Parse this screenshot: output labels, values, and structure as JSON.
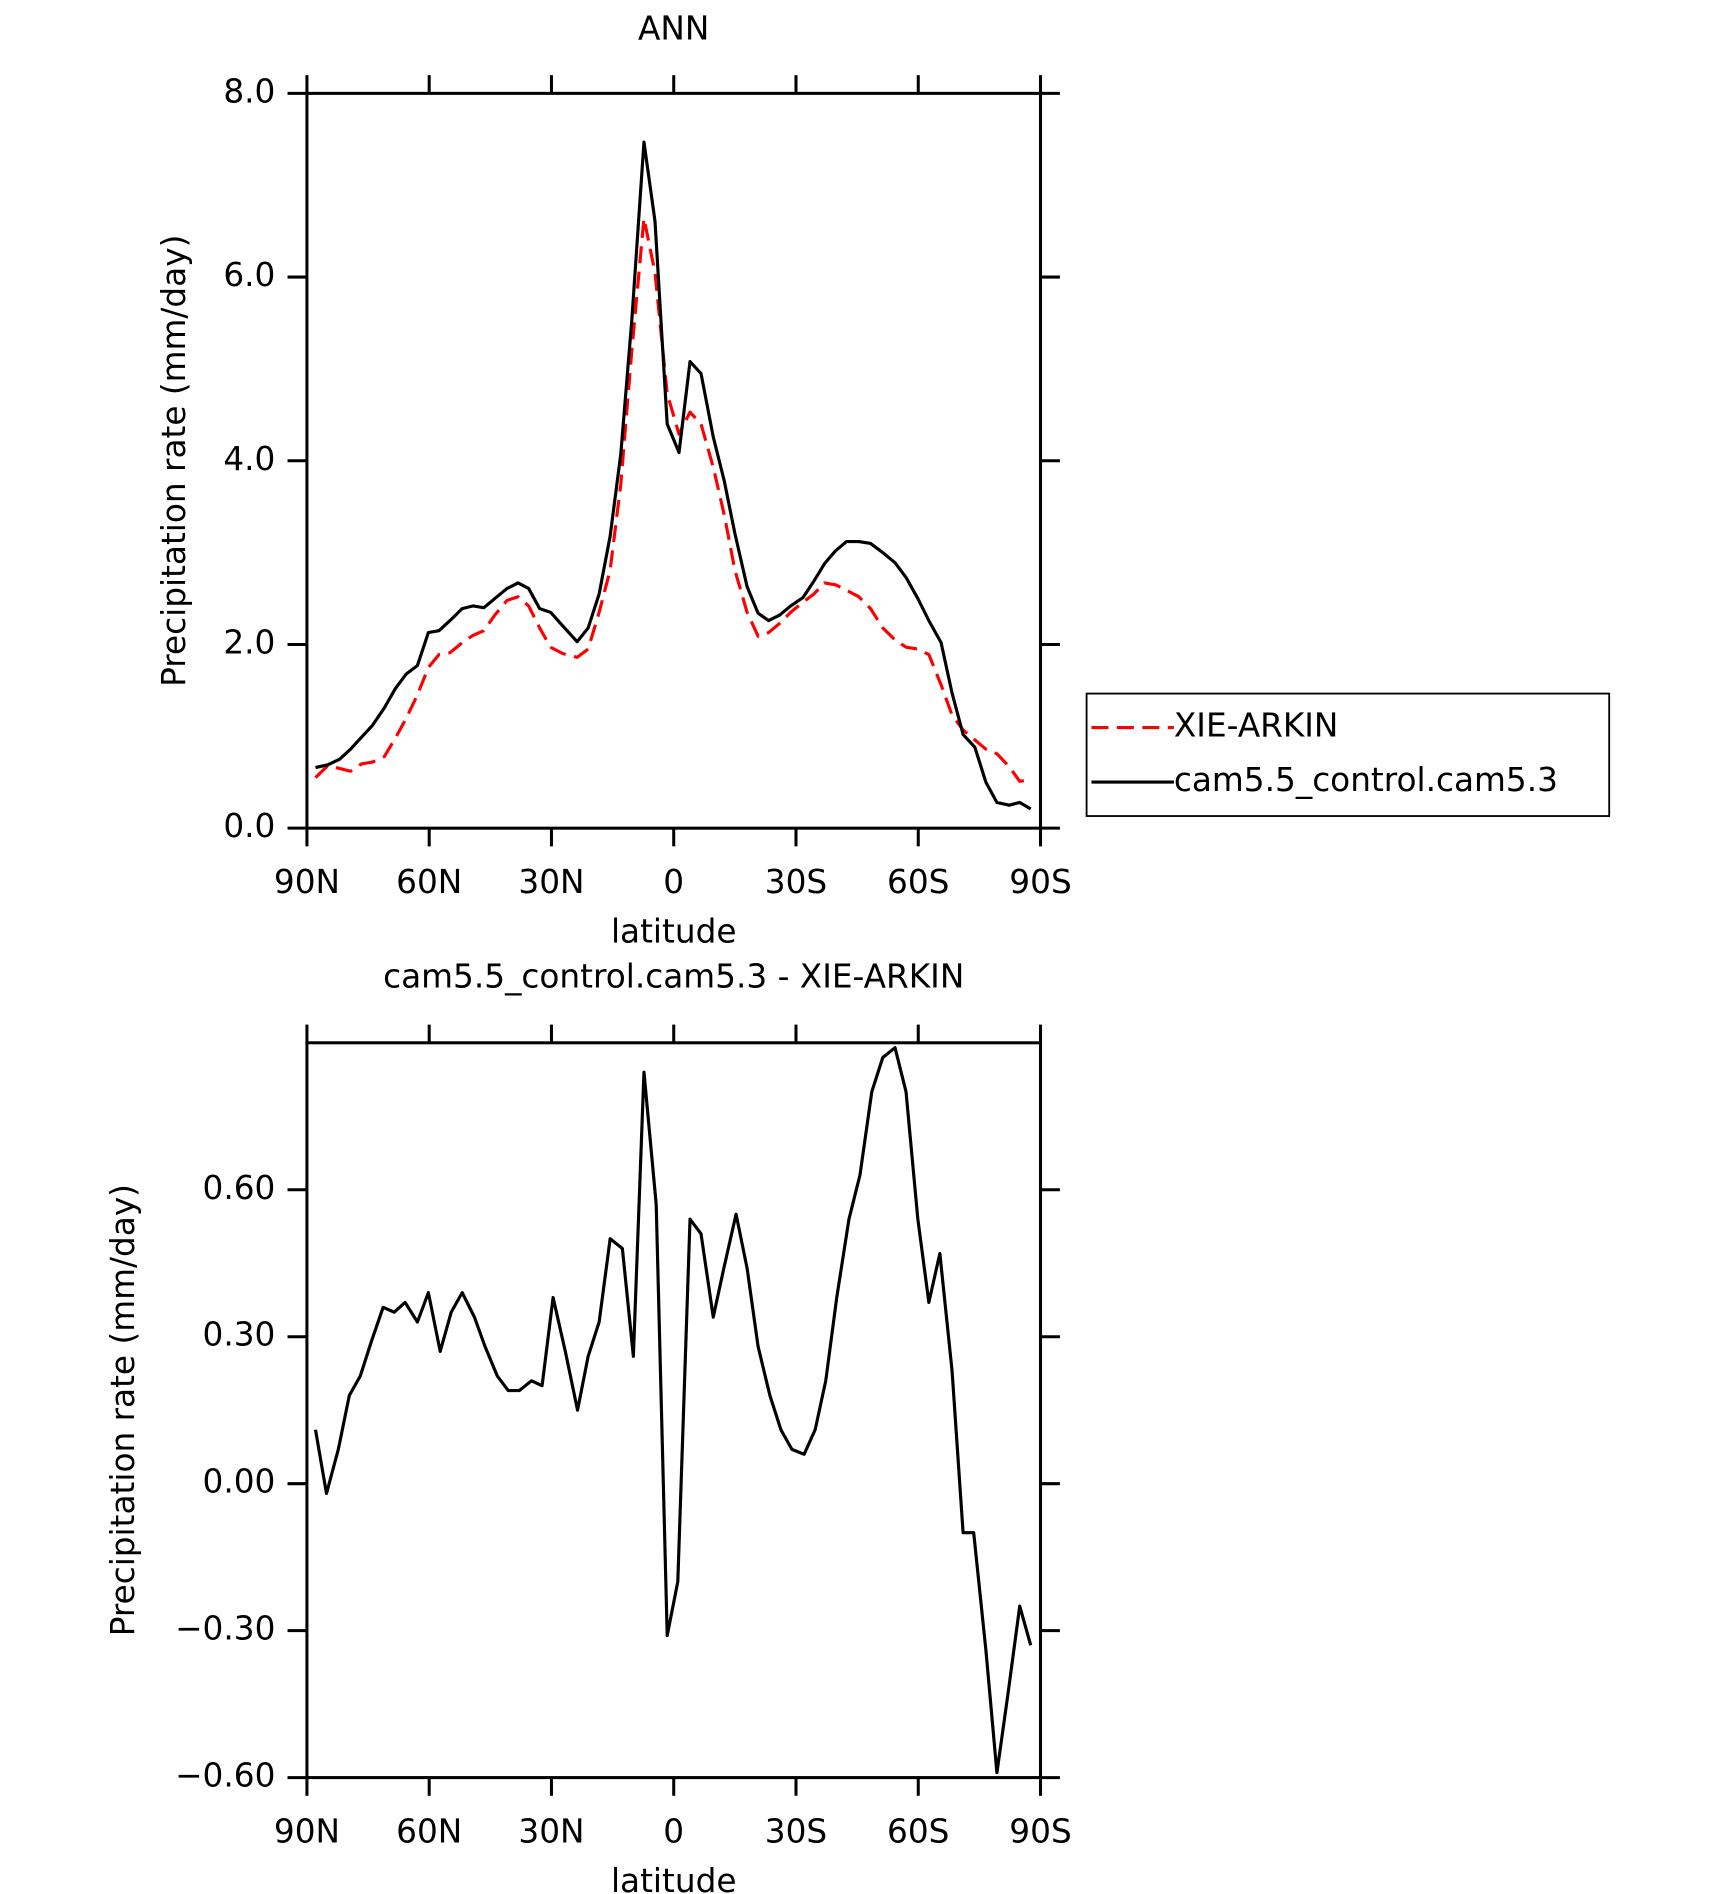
{
  "chart_data": [
    {
      "type": "line",
      "title": "ANN",
      "xlabel": "latitude",
      "ylabel": "Precipitation rate (mm/day)",
      "xlim": [
        90,
        -90
      ],
      "xticks": [
        {
          "value": 90,
          "label": "90N"
        },
        {
          "value": 60,
          "label": "60N"
        },
        {
          "value": 30,
          "label": "30N"
        },
        0,
        {
          "value": -30,
          "label": "30S"
        },
        {
          "value": -60,
          "label": "60S"
        },
        {
          "value": -90,
          "label": "90S"
        }
      ],
      "ylim": [
        0,
        8
      ],
      "yticks": [
        {
          "value": 0,
          "label": "0.0"
        },
        {
          "value": 2,
          "label": "2.0"
        },
        {
          "value": 4,
          "label": "4.0"
        },
        {
          "value": 6,
          "label": "6.0"
        },
        {
          "value": 8,
          "label": "8.0"
        }
      ],
      "legend": "right",
      "x": [
        87.9,
        84.9,
        82.0,
        79.3,
        76.6,
        73.9,
        71.0,
        68.3,
        65.6,
        62.9,
        60.2,
        57.6,
        54.9,
        51.9,
        49.2,
        46.6,
        43.9,
        40.9,
        38.2,
        35.6,
        32.9,
        30.2,
        27.2,
        23.7,
        21.0,
        18.3,
        15.6,
        13.0,
        10.3,
        7.3,
        4.6,
        1.6,
        -1.3,
        -4.0,
        -6.7,
        -9.7,
        -12.4,
        -15.0,
        -18.0,
        -20.7,
        -23.3,
        -26.0,
        -28.7,
        -31.7,
        -34.4,
        -37.0,
        -39.7,
        -42.4,
        -45.4,
        -48.3,
        -51.3,
        -54.3,
        -57.0,
        -59.9,
        -62.6,
        -65.6,
        -68.3,
        -71.0,
        -73.9,
        -76.6,
        -79.3,
        -82.3,
        -84.9,
        -87.6
      ],
      "series": [
        {
          "name": "XIE-ARKIN",
          "color": "#ff0000",
          "style": "dashed",
          "values": [
            0.55,
            0.68,
            0.65,
            0.62,
            0.7,
            0.72,
            0.78,
            0.98,
            1.2,
            1.45,
            1.75,
            1.89,
            1.91,
            2.02,
            2.1,
            2.15,
            2.32,
            2.48,
            2.52,
            2.42,
            2.18,
            1.97,
            1.9,
            1.86,
            1.95,
            2.35,
            2.81,
            3.74,
            5.19,
            6.64,
            6.05,
            4.73,
            4.29,
            4.53,
            4.4,
            3.93,
            3.41,
            2.81,
            2.35,
            2.09,
            2.13,
            2.23,
            2.35,
            2.46,
            2.55,
            2.67,
            2.65,
            2.59,
            2.52,
            2.39,
            2.18,
            2.05,
            1.97,
            1.95,
            1.89,
            1.56,
            1.23,
            1.07,
            0.96,
            0.86,
            0.81,
            0.67,
            0.51,
            0.53
          ]
        },
        {
          "name": "cam5.5_control.cam5.3",
          "color": "#000000",
          "style": "solid",
          "values": [
            0.66,
            0.69,
            0.75,
            0.86,
            0.99,
            1.12,
            1.31,
            1.52,
            1.68,
            1.77,
            2.13,
            2.15,
            2.26,
            2.39,
            2.42,
            2.4,
            2.5,
            2.61,
            2.67,
            2.61,
            2.39,
            2.35,
            2.2,
            2.03,
            2.18,
            2.55,
            3.18,
            4.07,
            5.52,
            7.47,
            6.61,
            4.4,
            4.09,
            5.08,
            4.95,
            4.26,
            3.78,
            3.21,
            2.63,
            2.34,
            2.26,
            2.32,
            2.42,
            2.51,
            2.69,
            2.88,
            3.02,
            3.12,
            3.12,
            3.1,
            3.0,
            2.89,
            2.73,
            2.5,
            2.26,
            2.02,
            1.47,
            1.02,
            0.88,
            0.5,
            0.28,
            0.25,
            0.28,
            0.21
          ]
        }
      ]
    },
    {
      "type": "line",
      "title": "cam5.5_control.cam5.3 - XIE-ARKIN",
      "xlabel": "latitude",
      "ylabel": "Precipitation rate (mm/day)",
      "xlim": [
        90,
        -90
      ],
      "xticks": [
        {
          "value": 90,
          "label": "90N"
        },
        {
          "value": 60,
          "label": "60N"
        },
        {
          "value": 30,
          "label": "30N"
        },
        0,
        {
          "value": -30,
          "label": "30S"
        },
        {
          "value": -60,
          "label": "60S"
        },
        {
          "value": -90,
          "label": "90S"
        }
      ],
      "ylim": [
        -0.6,
        0.9
      ],
      "yticks": [
        {
          "value": -0.6,
          "label": "−0.60"
        },
        {
          "value": -0.3,
          "label": "−0.30"
        },
        {
          "value": 0,
          "label": "0.00"
        },
        {
          "value": 0.3,
          "label": "0.30"
        },
        {
          "value": 0.6,
          "label": "0.60"
        }
      ],
      "x": [
        87.9,
        85.2,
        82.3,
        79.6,
        76.9,
        74.2,
        71.3,
        68.6,
        65.9,
        62.9,
        60.2,
        57.3,
        54.6,
        51.9,
        48.9,
        46.3,
        43.3,
        40.6,
        37.9,
        34.9,
        32.3,
        29.6,
        26.6,
        23.6,
        21.0,
        18.3,
        15.6,
        12.6,
        9.9,
        7.3,
        4.3,
        1.6,
        -1.0,
        -4.0,
        -6.7,
        -9.7,
        -12.3,
        -15.3,
        -18.0,
        -20.7,
        -23.6,
        -26.3,
        -29.0,
        -32.0,
        -34.7,
        -37.3,
        -40.0,
        -43.0,
        -45.7,
        -48.6,
        -51.3,
        -54.3,
        -57.0,
        -59.9,
        -62.6,
        -65.3,
        -68.3,
        -71.0,
        -73.6,
        -76.6,
        -79.3,
        -82.0,
        -84.9,
        -87.6
      ],
      "series": [
        {
          "color": "#000000",
          "style": "solid",
          "values": [
            0.11,
            -0.02,
            0.07,
            0.18,
            0.22,
            0.29,
            0.36,
            0.35,
            0.37,
            0.33,
            0.39,
            0.27,
            0.35,
            0.39,
            0.34,
            0.28,
            0.22,
            0.19,
            0.19,
            0.21,
            0.2,
            0.38,
            0.27,
            0.15,
            0.26,
            0.33,
            0.5,
            0.48,
            0.26,
            0.84,
            0.57,
            -0.31,
            -0.2,
            0.54,
            0.51,
            0.34,
            0.44,
            0.55,
            0.44,
            0.28,
            0.18,
            0.11,
            0.07,
            0.06,
            0.11,
            0.21,
            0.38,
            0.54,
            0.63,
            0.8,
            0.87,
            0.89,
            0.8,
            0.54,
            0.37,
            0.47,
            0.23,
            -0.1,
            -0.1,
            -0.34,
            -0.59,
            -0.43,
            -0.25,
            -0.33
          ]
        }
      ]
    }
  ]
}
